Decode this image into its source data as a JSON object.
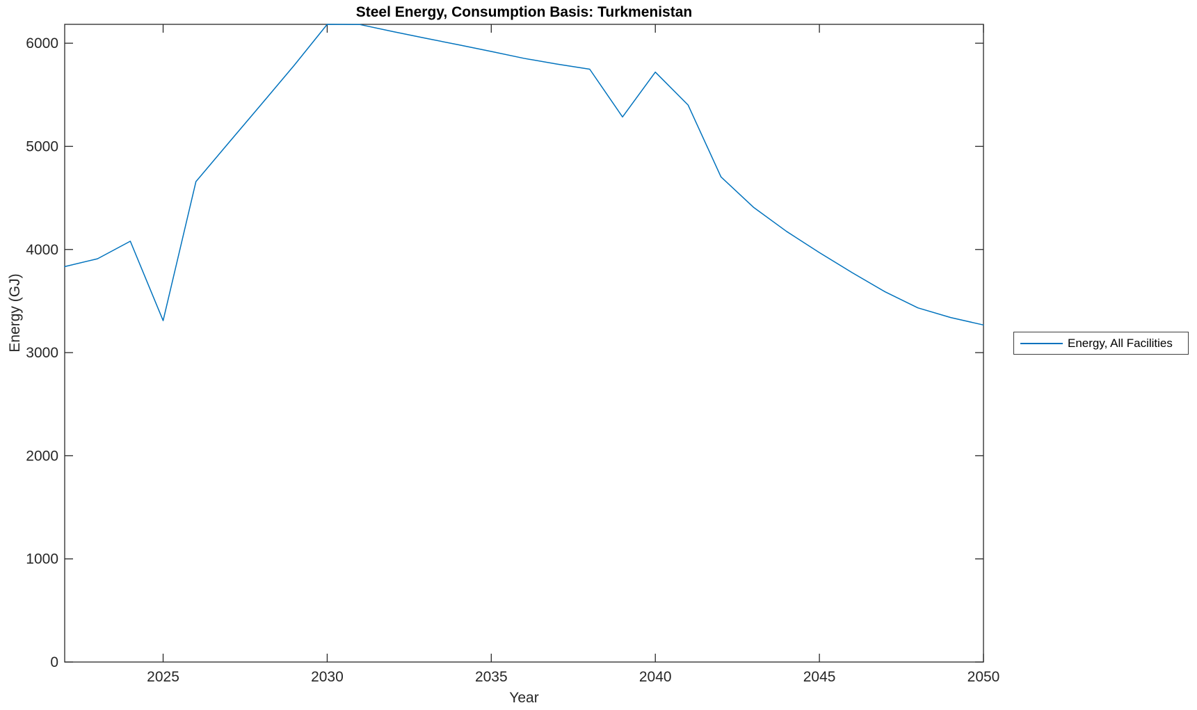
{
  "figure": {
    "background": "#ffffff"
  },
  "chart_data": {
    "type": "line",
    "title": "Steel Energy, Consumption Basis: Turkmenistan",
    "xlabel": "Year",
    "ylabel": "Energy (GJ)",
    "x": [
      2022,
      2023,
      2024,
      2025,
      2026,
      2027,
      2028,
      2029,
      2030,
      2031,
      2032,
      2033,
      2034,
      2035,
      2036,
      2037,
      2038,
      2039,
      2040,
      2041,
      2042,
      2043,
      2044,
      2045,
      2046,
      2047,
      2048,
      2049,
      2050
    ],
    "series": [
      {
        "name": "Energy, All Facilities",
        "color": "#0072BD",
        "values": [
          3834,
          3910,
          4080,
          3310,
          4658,
          5035,
          5410,
          5788,
          6183,
          6181,
          6113,
          6048,
          5985,
          5920,
          5853,
          5798,
          5748,
          5285,
          5720,
          5400,
          4704,
          4407,
          4175,
          3970,
          3775,
          3590,
          3434,
          3340,
          3268
        ]
      }
    ],
    "xlim": [
      2022,
      2050
    ],
    "ylim": [
      0,
      6183
    ],
    "xticks": [
      2025,
      2030,
      2035,
      2040,
      2045,
      2050
    ],
    "yticks": [
      0,
      1000,
      2000,
      3000,
      4000,
      5000,
      6000
    ],
    "grid": false,
    "box": true,
    "axis_color": "#262626",
    "tick_label_color": "#262626",
    "legend_position": "right-outside"
  }
}
